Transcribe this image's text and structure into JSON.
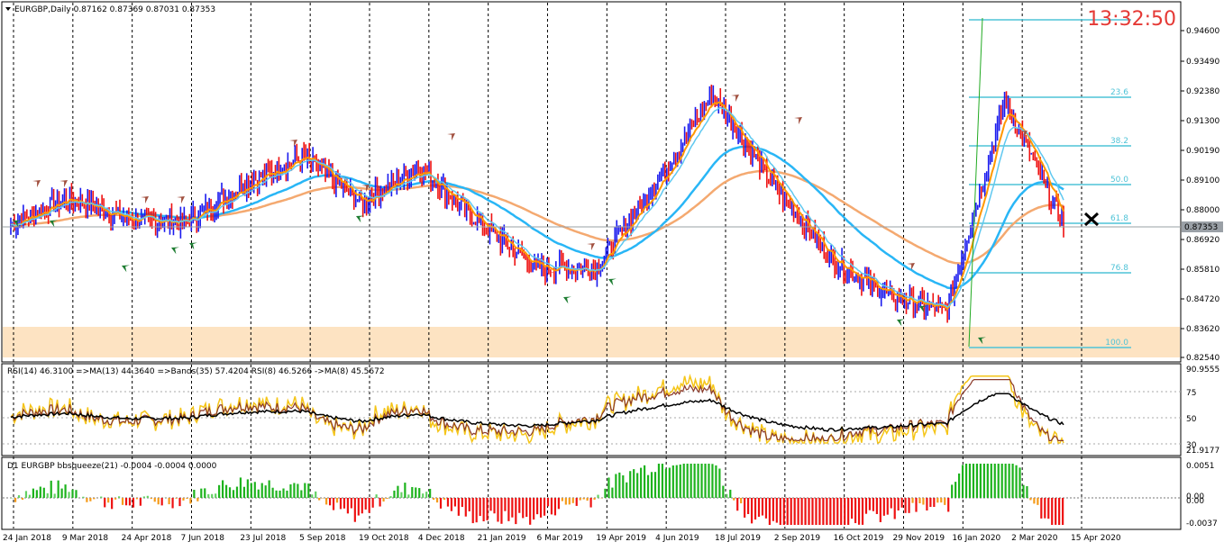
{
  "clock": "13:32:50",
  "main": {
    "header": "EURGBP,Daily  0.87162 0.87369 0.87031 0.87353",
    "price_ticks": [
      "0.94600",
      "0.93490",
      "0.92380",
      "0.91300",
      "0.90190",
      "0.89100",
      "0.88000",
      "0.86920",
      "0.85810",
      "0.84720",
      "0.83620",
      "0.82540"
    ],
    "current_price": "0.87353",
    "fib_levels": [
      {
        "label": "23.6"
      },
      {
        "label": "38.2"
      },
      {
        "label": "50.0"
      },
      {
        "label": "61.8"
      },
      {
        "label": "76.8"
      },
      {
        "label": "100.0"
      }
    ]
  },
  "rsi": {
    "header": "RSI(14) 46.3100  =>MA(13) 44.3640  =>Bands(35) 57.4204  RSI(8) 46.5266  ->MA(8) 45.5672",
    "ticks": [
      "90.9555",
      "75",
      "50",
      "30",
      "21.9177"
    ]
  },
  "squeeze": {
    "header": "D1 EURGBP bbsqueeze(21) -0.0004 -0.0004 0.0000",
    "ticks": [
      "0.0051",
      "0.00",
      "0.00",
      "-0.0037"
    ]
  },
  "date_labels": [
    "24 Jan 2018",
    "9 Mar 2018",
    "24 Apr 2018",
    "7 Jun 2018",
    "23 Jul 2018",
    "5 Sep 2018",
    "19 Oct 2018",
    "4 Dec 2018",
    "21 Jan 2019",
    "6 Mar 2019",
    "19 Apr 2019",
    "4 Jun 2019",
    "18 Jul 2019",
    "2 Sep 2019",
    "16 Oct 2019",
    "29 Nov 2019",
    "16 Jan 2020",
    "2 Mar 2020",
    "15 Apr 2020"
  ],
  "chart_data": {
    "type": "line",
    "x": [
      "24 Jan 2018",
      "9 Mar 2018",
      "24 Apr 2018",
      "7 Jun 2018",
      "23 Jul 2018",
      "5 Sep 2018",
      "19 Oct 2018",
      "4 Dec 2018",
      "21 Jan 2019",
      "6 Mar 2019",
      "19 Apr 2019",
      "4 Jun 2019",
      "18 Jul 2019",
      "2 Sep 2019",
      "16 Oct 2019",
      "29 Nov 2019",
      "16 Jan 2020",
      "2 Mar 2020",
      "15 Apr 2020"
    ],
    "series": [
      {
        "values": [
          0.874,
          0.884,
          0.876,
          0.875,
          0.889,
          0.899,
          0.882,
          0.895,
          0.875,
          0.858,
          0.858,
          0.888,
          0.922,
          0.89,
          0.862,
          0.848,
          0.842,
          0.92,
          0.874
        ]
      }
    ],
    "ylim": [
      0.8254,
      0.9515
    ]
  }
}
